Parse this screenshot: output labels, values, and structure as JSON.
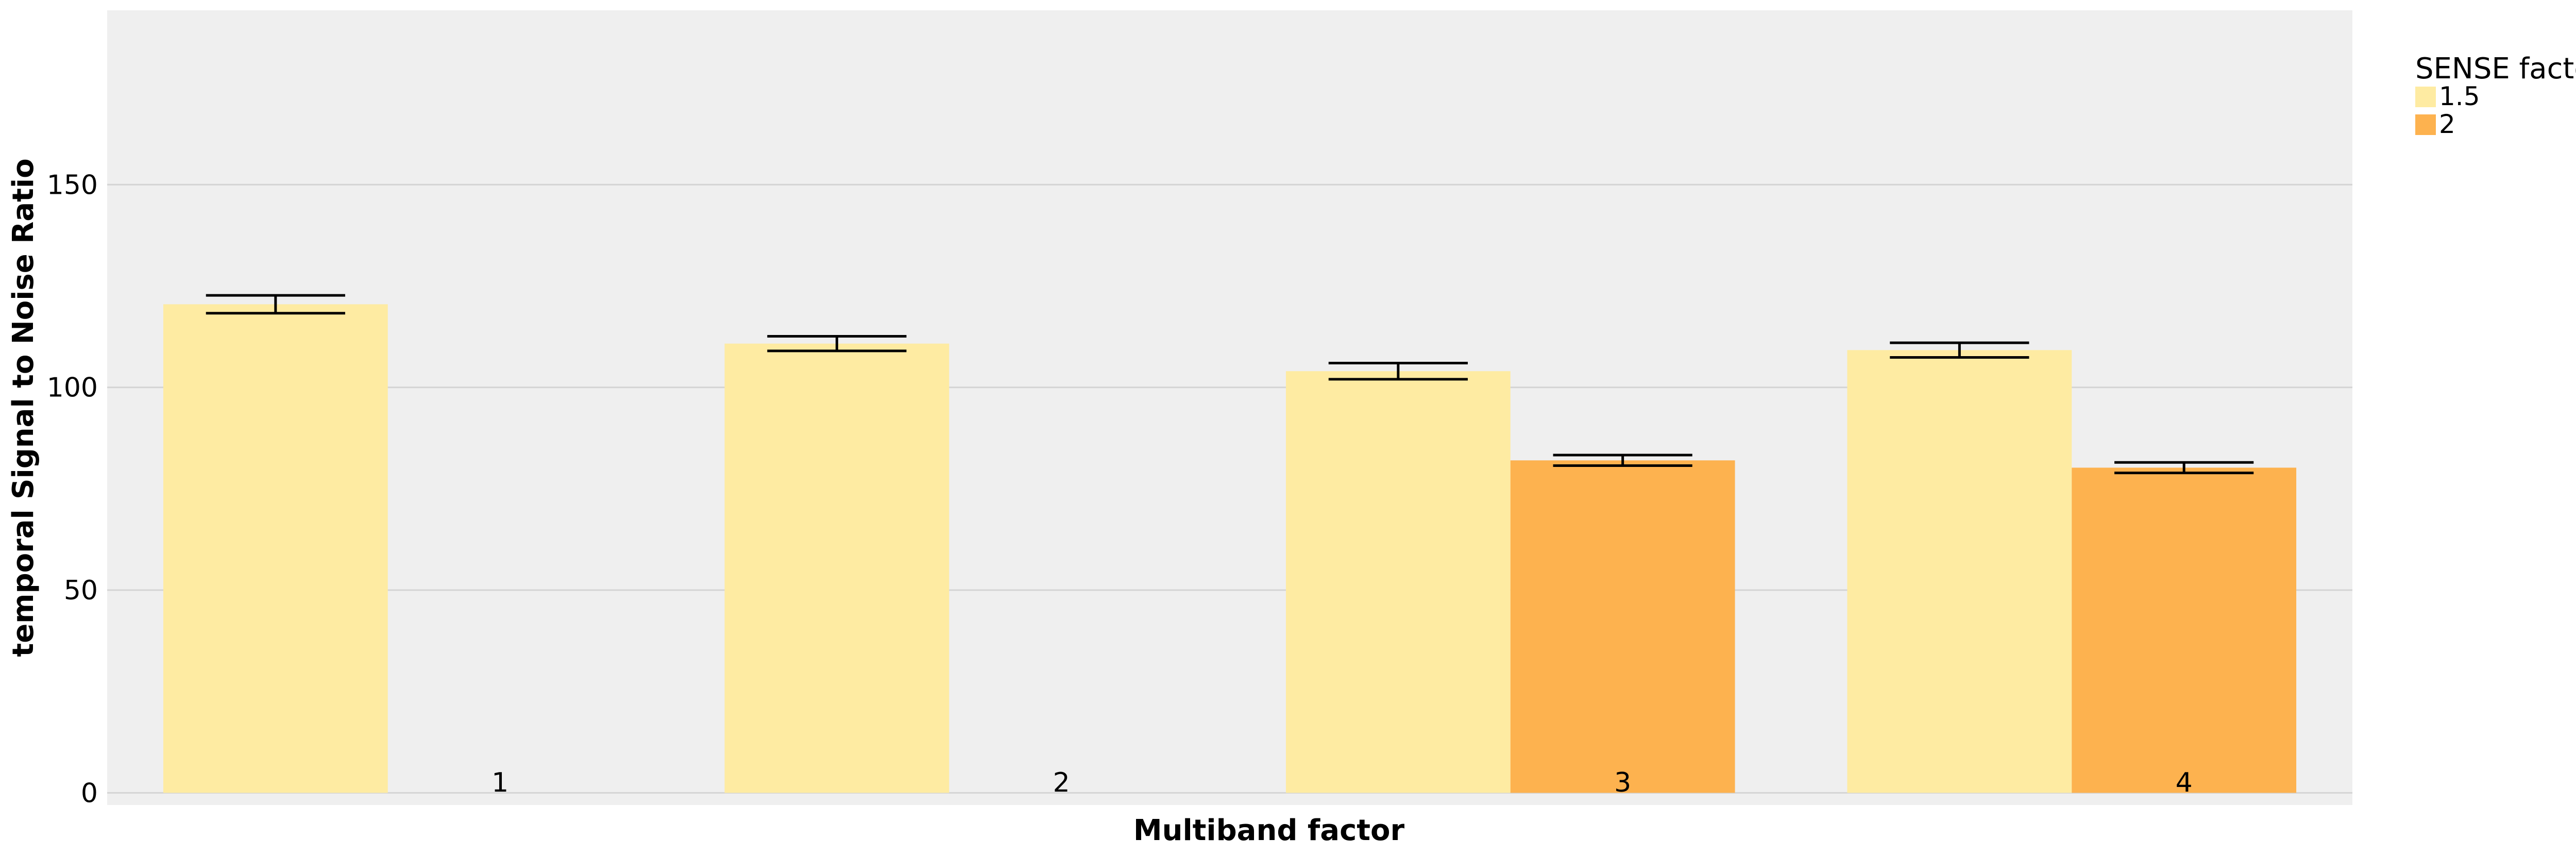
{
  "chart_data": {
    "type": "bar",
    "xlabel": "Multiband factor",
    "ylabel": "temporal Signal to Noise Ratio",
    "categories": [
      "1",
      "2",
      "3",
      "4"
    ],
    "series": [
      {
        "name": "1.5",
        "color": "#FEEBA2",
        "values": [
          120.5,
          110.8,
          104.0,
          109.2
        ],
        "error": [
          2.2,
          1.8,
          2.0,
          1.8
        ]
      },
      {
        "name": "2",
        "color": "#FDB24F",
        "values": [
          null,
          null,
          82.0,
          80.2
        ],
        "error": [
          null,
          null,
          1.3,
          1.3
        ]
      }
    ],
    "yticks": [
      0,
      50,
      100,
      150
    ],
    "ylim": [
      -3,
      193
    ],
    "grid": true,
    "plot_background": "#EFEFEF",
    "legend": {
      "title": "SENSE factor",
      "placement": "right"
    }
  }
}
